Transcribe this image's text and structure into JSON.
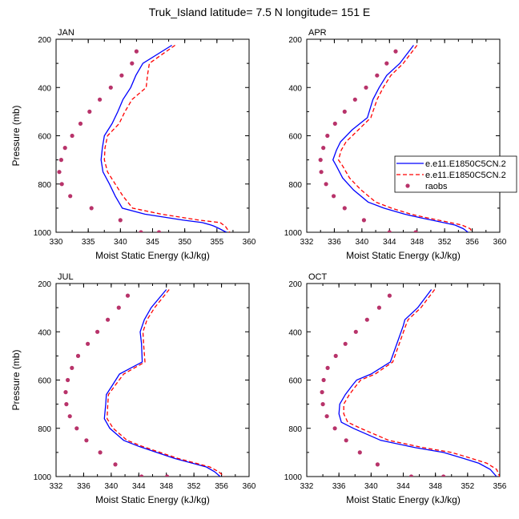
{
  "figure_title": "Truk_Island  latitude= 7.5 N longitude= 151 E",
  "legend": {
    "entries": [
      {
        "label": "e.e11.E1850C5CN.2",
        "color": "#0000ff",
        "style": "solid"
      },
      {
        "label": "e.e11.E1850C5CN.2",
        "color": "#ff0000",
        "style": "dashed"
      },
      {
        "label": "raobs",
        "color": "#b8336a",
        "style": "marker"
      }
    ]
  },
  "colors": {
    "model_a": "#0000ff",
    "model_b": "#ff0000",
    "raobs": "#b8336a"
  },
  "chart_data": [
    {
      "type": "line",
      "panel": "JAN",
      "xlabel": "Moist Static Energy (kJ/kg)",
      "ylabel": "Pressure (mb)",
      "xlim": [
        330,
        360
      ],
      "xticks": [
        330,
        335,
        340,
        345,
        350,
        355,
        360
      ],
      "ylim": [
        200,
        1000
      ],
      "yticks": [
        200,
        400,
        600,
        800,
        1000
      ],
      "y_inverted": true,
      "series": [
        {
          "name": "e.e11.E1850C5CN.2",
          "x": [
            348.0,
            343.5,
            342.4,
            341.6,
            340.4,
            339.6,
            338.7,
            337.5,
            337.2,
            337.0,
            337.3,
            338.3,
            339.2,
            340.3,
            343.8,
            349.8,
            352.7,
            354.1,
            354.6,
            355.4,
            356.1,
            356.5
          ],
          "y": [
            225,
            300,
            350,
            400,
            450,
            500,
            550,
            600,
            650,
            700,
            750,
            800,
            850,
            900,
            925,
            950,
            960,
            970,
            975,
            985,
            995,
            1000
          ]
        },
        {
          "name": "e.e11.E1850C5CN.2",
          "x": [
            348.5,
            344.5,
            344.2,
            344.0,
            341.8,
            340.7,
            339.8,
            338.0,
            337.6,
            337.5,
            338.0,
            339.2,
            340.4,
            341.9,
            346.4,
            352.3,
            355.5,
            356.3,
            356.7,
            357.0
          ],
          "y": [
            225,
            300,
            350,
            400,
            450,
            500,
            550,
            600,
            650,
            700,
            750,
            800,
            850,
            900,
            925,
            950,
            960,
            975,
            990,
            1000
          ]
        },
        {
          "name": "raobs",
          "x": [
            342.5,
            341.8,
            340.2,
            338.5,
            336.8,
            335.2,
            333.8,
            332.5,
            331.4,
            330.8,
            330.5,
            330.9,
            332.2,
            335.5,
            340.0,
            343.2,
            346.0
          ],
          "y": [
            250,
            300,
            350,
            400,
            450,
            500,
            550,
            600,
            650,
            700,
            750,
            800,
            850,
            900,
            950,
            1000,
            1000
          ]
        }
      ]
    },
    {
      "type": "line",
      "panel": "APR",
      "xlabel": "Moist Static Energy (kJ/kg)",
      "ylabel": "",
      "xlim": [
        332,
        360
      ],
      "xticks": [
        332,
        336,
        340,
        344,
        348,
        352,
        356,
        360
      ],
      "ylim": [
        200,
        1000
      ],
      "yticks": [
        200,
        400,
        600,
        800,
        1000
      ],
      "y_inverted": true,
      "series": [
        {
          "name": "e.e11.E1850C5CN.2",
          "x": [
            347.5,
            345.5,
            343.6,
            342.5,
            341.6,
            340.8,
            338.6,
            336.9,
            336.3,
            335.8,
            336.3,
            337.2,
            338.8,
            340.9,
            343.2,
            346.2,
            348.5,
            351.0,
            353.5,
            354.7,
            355.4
          ],
          "y": [
            225,
            300,
            350,
            400,
            450,
            525,
            575,
            625,
            660,
            700,
            725,
            775,
            825,
            875,
            900,
            925,
            940,
            955,
            970,
            985,
            1000
          ]
        },
        {
          "name": "e.e11.E1850C5CN.2",
          "x": [
            348.0,
            346.0,
            344.2,
            343.1,
            342.2,
            341.3,
            339.5,
            337.7,
            337.0,
            336.6,
            337.2,
            338.2,
            339.9,
            342.0,
            344.3,
            347.1,
            349.4,
            352.0,
            354.5,
            355.7,
            356.0
          ],
          "y": [
            225,
            300,
            350,
            400,
            450,
            525,
            575,
            625,
            660,
            700,
            725,
            775,
            825,
            875,
            900,
            925,
            940,
            955,
            970,
            985,
            1000
          ]
        },
        {
          "name": "raobs",
          "x": [
            344.9,
            343.6,
            342.2,
            340.6,
            339.0,
            337.5,
            336.1,
            335.0,
            334.4,
            334.0,
            334.1,
            334.8,
            335.9,
            337.5,
            340.3,
            344.0,
            347.8
          ],
          "y": [
            250,
            300,
            350,
            400,
            450,
            500,
            550,
            600,
            650,
            700,
            750,
            800,
            850,
            900,
            950,
            1000,
            1000
          ]
        }
      ]
    },
    {
      "type": "line",
      "panel": "JUL",
      "xlabel": "Moist Static Energy (kJ/kg)",
      "ylabel": "Pressure (mb)",
      "xlim": [
        332,
        360
      ],
      "xticks": [
        332,
        336,
        340,
        344,
        348,
        352,
        356,
        360
      ],
      "ylim": [
        200,
        1000
      ],
      "yticks": [
        200,
        400,
        600,
        800,
        1000
      ],
      "y_inverted": true,
      "series": [
        {
          "name": "e.e11.E1850C5CN.2",
          "x": [
            348.0,
            345.8,
            344.8,
            344.2,
            344.4,
            344.5,
            341.2,
            340.1,
            339.3,
            339.2,
            339.0,
            339.8,
            341.8,
            344.0,
            346.6,
            349.2,
            351.8,
            353.8,
            355.0,
            355.8
          ],
          "y": [
            225,
            300,
            350,
            400,
            450,
            525,
            575,
            625,
            660,
            700,
            760,
            800,
            850,
            875,
            900,
            925,
            945,
            960,
            980,
            1000
          ]
        },
        {
          "name": "e.e11.E1850C5CN.2",
          "x": [
            348.4,
            346.3,
            345.2,
            344.6,
            344.7,
            344.9,
            341.8,
            340.5,
            339.6,
            339.5,
            339.4,
            340.3,
            342.3,
            344.5,
            347.1,
            349.7,
            352.3,
            354.3,
            355.6,
            356.4
          ],
          "y": [
            225,
            300,
            350,
            400,
            450,
            525,
            575,
            625,
            660,
            700,
            760,
            800,
            850,
            875,
            900,
            925,
            945,
            960,
            980,
            1000
          ]
        },
        {
          "name": "raobs",
          "x": [
            342.4,
            341.1,
            339.5,
            338.0,
            336.6,
            335.2,
            334.3,
            333.7,
            333.4,
            333.5,
            334.0,
            335.0,
            336.4,
            338.4,
            340.6,
            344.4,
            348.1
          ],
          "y": [
            250,
            300,
            350,
            400,
            450,
            500,
            550,
            600,
            650,
            700,
            750,
            800,
            850,
            900,
            950,
            1000,
            1000
          ]
        }
      ]
    },
    {
      "type": "line",
      "panel": "OCT",
      "xlabel": "Moist Static Energy (kJ/kg)",
      "ylabel": "",
      "xlim": [
        332,
        356
      ],
      "xticks": [
        332,
        336,
        340,
        344,
        348,
        352,
        356
      ],
      "ylim": [
        200,
        1000
      ],
      "yticks": [
        200,
        400,
        600,
        800,
        1000
      ],
      "y_inverted": true,
      "series": [
        {
          "name": "e.e11.E1850C5CN.2",
          "x": [
            347.5,
            345.8,
            344.2,
            344.0,
            342.4,
            340.0,
            338.2,
            337.6,
            336.8,
            336.1,
            336.0,
            336.3,
            337.8,
            341.2,
            345.5,
            349.0,
            351.5,
            353.4,
            354.8,
            355.6
          ],
          "y": [
            225,
            300,
            350,
            375,
            525,
            575,
            600,
            625,
            660,
            700,
            740,
            775,
            800,
            850,
            880,
            900,
            925,
            945,
            970,
            1000
          ]
        },
        {
          "name": "e.e11.E1850C5CN.2",
          "x": [
            347.9,
            346.2,
            344.6,
            344.3,
            342.7,
            340.5,
            338.7,
            338.1,
            337.3,
            336.6,
            336.6,
            337.1,
            338.7,
            342.2,
            346.5,
            350.0,
            352.5,
            354.4,
            355.6,
            356.0
          ],
          "y": [
            225,
            300,
            350,
            375,
            525,
            575,
            600,
            625,
            660,
            700,
            740,
            775,
            800,
            850,
            880,
            900,
            925,
            945,
            970,
            1000
          ]
        },
        {
          "name": "raobs",
          "x": [
            342.3,
            341.0,
            339.5,
            338.1,
            336.8,
            335.6,
            334.6,
            334.1,
            333.9,
            334.0,
            334.5,
            335.5,
            336.9,
            338.6,
            340.8,
            345.0,
            349.0
          ],
          "y": [
            250,
            300,
            350,
            400,
            450,
            500,
            550,
            600,
            650,
            700,
            750,
            800,
            850,
            900,
            950,
            1000,
            1000
          ]
        }
      ]
    }
  ]
}
